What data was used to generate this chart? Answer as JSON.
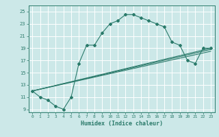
{
  "xlabel": "Humidex (Indice chaleur)",
  "ylabel": "",
  "bg_color": "#cce8e8",
  "grid_color": "#ffffff",
  "line_color": "#2a7a6a",
  "marker_color": "#2a7a6a",
  "xlim": [
    -0.5,
    23.5
  ],
  "ylim": [
    8.5,
    26
  ],
  "xticks": [
    0,
    1,
    2,
    3,
    4,
    5,
    6,
    7,
    8,
    9,
    10,
    11,
    12,
    13,
    14,
    15,
    16,
    17,
    18,
    19,
    20,
    21,
    22,
    23
  ],
  "yticks": [
    9,
    11,
    13,
    15,
    17,
    19,
    21,
    23,
    25
  ],
  "series": [
    [
      0,
      12
    ],
    [
      1,
      11
    ],
    [
      2,
      10.5
    ],
    [
      3,
      9.5
    ],
    [
      4,
      9
    ],
    [
      5,
      11
    ],
    [
      6,
      16.5
    ],
    [
      7,
      19.5
    ],
    [
      8,
      19.5
    ],
    [
      9,
      21.5
    ],
    [
      10,
      23
    ],
    [
      11,
      23.5
    ],
    [
      12,
      24.5
    ],
    [
      13,
      24.5
    ],
    [
      14,
      24
    ],
    [
      15,
      23.5
    ],
    [
      16,
      23
    ],
    [
      17,
      22.5
    ],
    [
      18,
      20
    ],
    [
      19,
      19.5
    ],
    [
      20,
      17
    ],
    [
      21,
      16.5
    ],
    [
      22,
      19
    ],
    [
      23,
      19
    ]
  ],
  "line2": [
    [
      0,
      12
    ],
    [
      23,
      19
    ]
  ],
  "line3": [
    [
      0,
      12
    ],
    [
      23,
      18.5
    ]
  ],
  "line4": [
    [
      0,
      12
    ],
    [
      23,
      18.8
    ]
  ]
}
